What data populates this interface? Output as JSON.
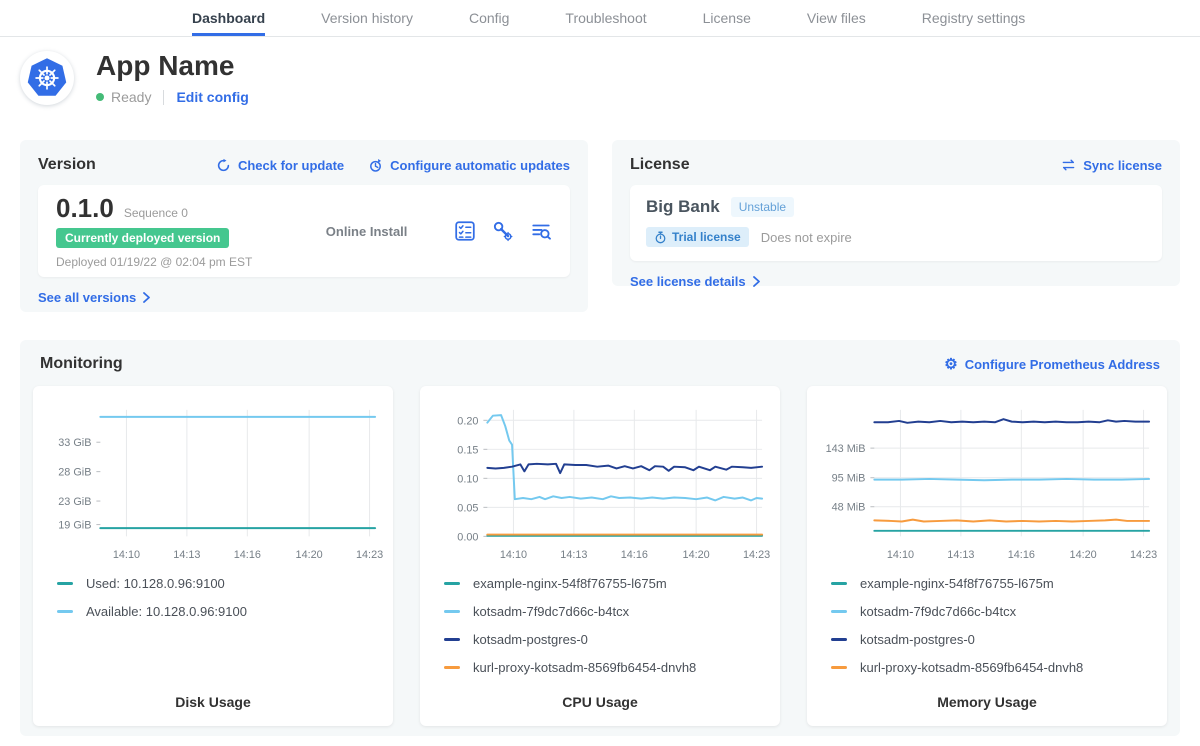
{
  "nav": {
    "tabs": [
      {
        "label": "Dashboard",
        "active": true
      },
      {
        "label": "Version history",
        "active": false
      },
      {
        "label": "Config",
        "active": false
      },
      {
        "label": "Troubleshoot",
        "active": false
      },
      {
        "label": "License",
        "active": false
      },
      {
        "label": "View files",
        "active": false
      },
      {
        "label": "Registry settings",
        "active": false
      }
    ]
  },
  "app_header": {
    "title": "App Name",
    "status": "Ready",
    "edit_config": "Edit config"
  },
  "version_card": {
    "title": "Version",
    "check_for_update": "Check for update",
    "configure_updates": "Configure automatic updates",
    "version": "0.1.0",
    "sequence": "Sequence 0",
    "deployed_badge": "Currently deployed version",
    "deployed_at": "Deployed 01/19/22 @ 02:04 pm EST",
    "install_type": "Online Install",
    "see_all": "See all versions"
  },
  "license_card": {
    "title": "License",
    "sync": "Sync license",
    "name": "Big Bank",
    "channel": "Unstable",
    "type_badge": "Trial license",
    "expiry": "Does not expire",
    "see_details": "See license details"
  },
  "monitoring": {
    "title": "Monitoring",
    "configure_prometheus": "Configure Prometheus Address"
  },
  "colors": {
    "accent_blue": "#326de6",
    "status_green": "#44bb77",
    "deployed_badge_green": "#45c78f",
    "series_teal": "#26a3a3",
    "series_light_blue": "#74c9ef",
    "series_navy": "#223f91",
    "series_orange": "#f79b3e"
  },
  "chart_data": [
    {
      "type": "line",
      "title": "Disk Usage",
      "grid_h": false,
      "ylim": [
        17,
        38.5
      ],
      "y_ticks": [
        {
          "v": 33,
          "label": "33 GiB"
        },
        {
          "v": 28,
          "label": "28 GiB"
        },
        {
          "v": 23,
          "label": "23 GiB"
        },
        {
          "v": 19,
          "label": "19 GiB"
        }
      ],
      "x_ticks": [
        {
          "f": 0.095,
          "label": "14:10"
        },
        {
          "f": 0.315,
          "label": "14:13"
        },
        {
          "f": 0.535,
          "label": "14:16"
        },
        {
          "f": 0.76,
          "label": "14:20"
        },
        {
          "f": 0.98,
          "label": "14:23"
        }
      ],
      "series": [
        {
          "name": "Used: 10.128.0.96:9100",
          "color": "#26a3a3",
          "points": [
            [
              0,
              18.4
            ],
            [
              1,
              18.4
            ]
          ]
        },
        {
          "name": "Available: 10.128.0.96:9100",
          "color": "#74c9ef",
          "points": [
            [
              0,
              37.3
            ],
            [
              1,
              37.3
            ]
          ]
        }
      ]
    },
    {
      "type": "line",
      "title": "CPU Usage",
      "grid_h": true,
      "ylim": [
        0,
        0.218
      ],
      "y_ticks": [
        {
          "v": 0.2,
          "label": "0.20"
        },
        {
          "v": 0.15,
          "label": "0.15"
        },
        {
          "v": 0.1,
          "label": "0.10"
        },
        {
          "v": 0.05,
          "label": "0.05"
        },
        {
          "v": 0.0,
          "label": "0.00"
        }
      ],
      "x_ticks": [
        {
          "f": 0.095,
          "label": "14:10"
        },
        {
          "f": 0.315,
          "label": "14:13"
        },
        {
          "f": 0.535,
          "label": "14:16"
        },
        {
          "f": 0.76,
          "label": "14:20"
        },
        {
          "f": 0.98,
          "label": "14:23"
        }
      ],
      "series": [
        {
          "name": "example-nginx-54f8f76755-l675m",
          "color": "#26a3a3",
          "points": [
            [
              0,
              0.001
            ],
            [
              1,
              0.001
            ]
          ]
        },
        {
          "name": "kotsadm-7f9dc7d66c-b4tcx",
          "color": "#74c9ef",
          "points": [
            [
              0,
              0.196
            ],
            [
              0.02,
              0.208
            ],
            [
              0.05,
              0.209
            ],
            [
              0.065,
              0.19
            ],
            [
              0.08,
              0.165
            ],
            [
              0.09,
              0.158
            ],
            [
              0.1,
              0.064
            ],
            [
              0.13,
              0.066
            ],
            [
              0.16,
              0.064
            ],
            [
              0.19,
              0.068
            ],
            [
              0.21,
              0.064
            ],
            [
              0.24,
              0.069
            ],
            [
              0.27,
              0.066
            ],
            [
              0.3,
              0.068
            ],
            [
              0.34,
              0.065
            ],
            [
              0.38,
              0.067
            ],
            [
              0.42,
              0.064
            ],
            [
              0.45,
              0.069
            ],
            [
              0.48,
              0.066
            ],
            [
              0.52,
              0.067
            ],
            [
              0.56,
              0.065
            ],
            [
              0.6,
              0.067
            ],
            [
              0.64,
              0.065
            ],
            [
              0.68,
              0.067
            ],
            [
              0.72,
              0.066
            ],
            [
              0.76,
              0.064
            ],
            [
              0.8,
              0.067
            ],
            [
              0.83,
              0.062
            ],
            [
              0.86,
              0.068
            ],
            [
              0.9,
              0.065
            ],
            [
              0.93,
              0.067
            ],
            [
              0.96,
              0.062
            ],
            [
              0.98,
              0.066
            ],
            [
              1,
              0.065
            ]
          ]
        },
        {
          "name": "kotsadm-postgres-0",
          "color": "#223f91",
          "points": [
            [
              0,
              0.118
            ],
            [
              0.03,
              0.117
            ],
            [
              0.06,
              0.118
            ],
            [
              0.09,
              0.12
            ],
            [
              0.12,
              0.124
            ],
            [
              0.135,
              0.112
            ],
            [
              0.15,
              0.124
            ],
            [
              0.18,
              0.125
            ],
            [
              0.22,
              0.124
            ],
            [
              0.25,
              0.125
            ],
            [
              0.265,
              0.109
            ],
            [
              0.28,
              0.124
            ],
            [
              0.32,
              0.123
            ],
            [
              0.36,
              0.123
            ],
            [
              0.4,
              0.12
            ],
            [
              0.44,
              0.122
            ],
            [
              0.47,
              0.117
            ],
            [
              0.5,
              0.121
            ],
            [
              0.53,
              0.117
            ],
            [
              0.56,
              0.121
            ],
            [
              0.59,
              0.114
            ],
            [
              0.61,
              0.121
            ],
            [
              0.64,
              0.12
            ],
            [
              0.66,
              0.113
            ],
            [
              0.68,
              0.12
            ],
            [
              0.72,
              0.119
            ],
            [
              0.75,
              0.114
            ],
            [
              0.77,
              0.12
            ],
            [
              0.81,
              0.114
            ],
            [
              0.83,
              0.12
            ],
            [
              0.87,
              0.115
            ],
            [
              0.89,
              0.12
            ],
            [
              0.93,
              0.119
            ],
            [
              0.96,
              0.118
            ],
            [
              1,
              0.12
            ]
          ]
        },
        {
          "name": "kurl-proxy-kotsadm-8569fb6454-dnvh8",
          "color": "#f79b3e",
          "points": [
            [
              0,
              0.003
            ],
            [
              1,
              0.003
            ]
          ]
        }
      ]
    },
    {
      "type": "line",
      "title": "Memory Usage",
      "grid_h": true,
      "ylim": [
        0,
        205
      ],
      "y_ticks": [
        {
          "v": 143,
          "label": "143 MiB"
        },
        {
          "v": 95,
          "label": "95 MiB"
        },
        {
          "v": 48,
          "label": "48 MiB"
        }
      ],
      "x_ticks": [
        {
          "f": 0.095,
          "label": "14:10"
        },
        {
          "f": 0.315,
          "label": "14:13"
        },
        {
          "f": 0.535,
          "label": "14:16"
        },
        {
          "f": 0.76,
          "label": "14:20"
        },
        {
          "f": 0.98,
          "label": "14:23"
        }
      ],
      "series": [
        {
          "name": "example-nginx-54f8f76755-l675m",
          "color": "#26a3a3",
          "points": [
            [
              0,
              9
            ],
            [
              1,
              9
            ]
          ]
        },
        {
          "name": "kotsadm-7f9dc7d66c-b4tcx",
          "color": "#74c9ef",
          "points": [
            [
              0,
              92
            ],
            [
              0.1,
              92
            ],
            [
              0.2,
              93
            ],
            [
              0.3,
              92
            ],
            [
              0.4,
              91
            ],
            [
              0.5,
              92
            ],
            [
              0.6,
              92
            ],
            [
              0.7,
              93
            ],
            [
              0.8,
              92
            ],
            [
              0.9,
              92
            ],
            [
              1,
              93
            ]
          ]
        },
        {
          "name": "kotsadm-postgres-0",
          "color": "#223f91",
          "points": [
            [
              0,
              185
            ],
            [
              0.05,
              185
            ],
            [
              0.09,
              187
            ],
            [
              0.12,
              184
            ],
            [
              0.16,
              186
            ],
            [
              0.2,
              185
            ],
            [
              0.24,
              187
            ],
            [
              0.28,
              185
            ],
            [
              0.32,
              186
            ],
            [
              0.36,
              185
            ],
            [
              0.4,
              186
            ],
            [
              0.44,
              185
            ],
            [
              0.47,
              190
            ],
            [
              0.5,
              186
            ],
            [
              0.54,
              185
            ],
            [
              0.58,
              186
            ],
            [
              0.62,
              185
            ],
            [
              0.66,
              186
            ],
            [
              0.7,
              185
            ],
            [
              0.74,
              185
            ],
            [
              0.78,
              186
            ],
            [
              0.82,
              185
            ],
            [
              0.85,
              188
            ],
            [
              0.88,
              186
            ],
            [
              0.91,
              187
            ],
            [
              0.95,
              186
            ],
            [
              1,
              186
            ]
          ]
        },
        {
          "name": "kurl-proxy-kotsadm-8569fb6454-dnvh8",
          "color": "#f79b3e",
          "points": [
            [
              0,
              26
            ],
            [
              0.06,
              25
            ],
            [
              0.1,
              24
            ],
            [
              0.14,
              27
            ],
            [
              0.18,
              24
            ],
            [
              0.24,
              25
            ],
            [
              0.3,
              26
            ],
            [
              0.36,
              24
            ],
            [
              0.42,
              26
            ],
            [
              0.48,
              24
            ],
            [
              0.54,
              25
            ],
            [
              0.6,
              24
            ],
            [
              0.66,
              25
            ],
            [
              0.72,
              24
            ],
            [
              0.78,
              25
            ],
            [
              0.84,
              26
            ],
            [
              0.88,
              27
            ],
            [
              0.92,
              25
            ],
            [
              1,
              25
            ]
          ]
        }
      ]
    }
  ]
}
